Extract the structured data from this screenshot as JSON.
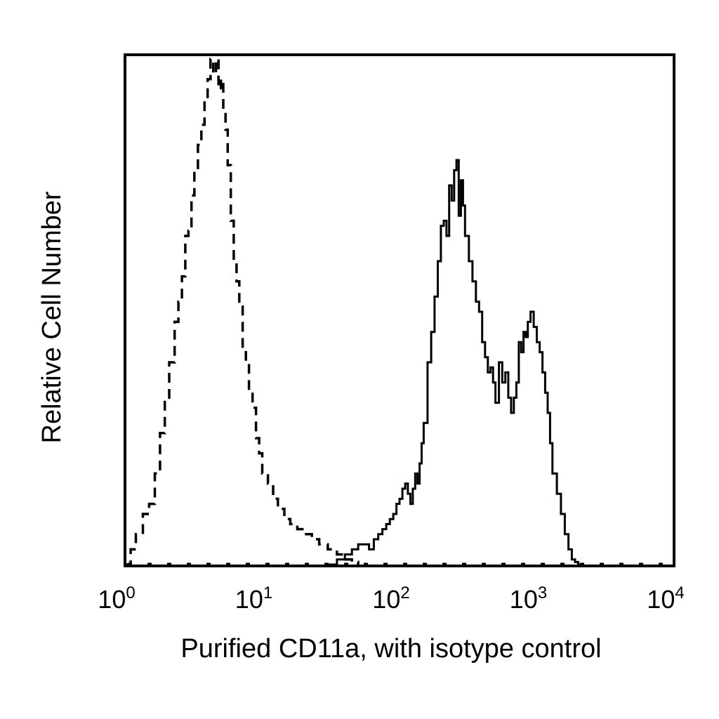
{
  "chart_data": {
    "type": "line",
    "title": "",
    "xlabel": "Purified CD11a, with isotype control",
    "ylabel": "Relative Cell Number",
    "x_scale": "log",
    "xlim": [
      1,
      10000
    ],
    "ylim": [
      0,
      100
    ],
    "x_ticks": [
      {
        "value": 1,
        "base": "10",
        "exp": "0"
      },
      {
        "value": 10,
        "base": "10",
        "exp": "1"
      },
      {
        "value": 100,
        "base": "10",
        "exp": "2"
      },
      {
        "value": 1000,
        "base": "10",
        "exp": "3"
      },
      {
        "value": 10000,
        "base": "10",
        "exp": "4"
      }
    ],
    "grid": false,
    "legend": "none",
    "series": [
      {
        "style": "dashed",
        "color": "#000000",
        "x": [
          1.0,
          1.1,
          1.2,
          1.35,
          1.5,
          1.65,
          1.8,
          1.95,
          2.1,
          2.3,
          2.45,
          2.6,
          2.75,
          2.9,
          3.05,
          3.2,
          3.4,
          3.6,
          3.8,
          4.0,
          4.2,
          4.4,
          4.6,
          4.8,
          5.0,
          5.2,
          5.4,
          5.6,
          5.9,
          6.2,
          6.5,
          6.8,
          7.2,
          7.6,
          8.0,
          8.5,
          9.0,
          9.5,
          10.0,
          11.0,
          12.0,
          13.0,
          14.5,
          16.0,
          18.0,
          20.0,
          23.0,
          26.0,
          30.0,
          35.0,
          40.0,
          45.0,
          50.0
        ],
        "y": [
          0,
          3,
          6,
          10,
          12,
          18,
          26,
          33,
          40,
          48,
          52,
          57,
          65,
          66,
          73,
          78,
          83,
          87,
          92,
          96,
          100,
          97,
          100,
          94,
          96,
          90,
          86,
          79,
          68,
          60,
          56,
          51,
          42,
          40,
          34,
          31,
          25,
          22,
          18,
          16,
          13,
          11,
          9,
          8,
          7,
          6,
          5,
          4,
          3,
          2,
          1,
          0.5,
          0
        ]
      },
      {
        "style": "solid",
        "color": "#000000",
        "x": [
          30.0,
          35.0,
          40.0,
          45.0,
          50.0,
          55.0,
          60.0,
          65.0,
          70.0,
          75.0,
          80.0,
          85.0,
          90.0,
          95.0,
          100.0,
          105.0,
          110.0,
          115.0,
          120.0,
          125.0,
          130.0,
          135.0,
          140.0,
          145.0,
          150.0,
          160.0,
          170.0,
          180.0,
          190.0,
          200.0,
          210.0,
          220.0,
          230.0,
          240.0,
          250.0,
          260.0,
          270.0,
          280.0,
          290.0,
          300.0,
          320.0,
          340.0,
          360.0,
          380.0,
          400.0,
          420.0,
          440.0,
          460.0,
          480.0,
          500.0,
          530.0,
          560.0,
          590.0,
          620.0,
          650.0,
          680.0,
          710.0,
          740.0,
          770.0,
          800.0,
          830.0,
          860.0,
          900.0,
          950.0,
          1000.0,
          1050.0,
          1100.0,
          1150.0,
          1200.0,
          1250.0,
          1300.0,
          1400.0,
          1500.0,
          1600.0,
          1700.0,
          1800.0,
          1900.0,
          2000.0,
          2100.0,
          2200.0
        ],
        "y": [
          0,
          1,
          2,
          3,
          4,
          4,
          3,
          5,
          6,
          7,
          8,
          9,
          10,
          12,
          13,
          15,
          16,
          14,
          12,
          15,
          18,
          16,
          20,
          24,
          28,
          40,
          46,
          53,
          60,
          67,
          68,
          65,
          75,
          72,
          78,
          80,
          69,
          76,
          71,
          65,
          60,
          56,
          52,
          50,
          44,
          41,
          38,
          39,
          36,
          32,
          40,
          36,
          38,
          33,
          30,
          33,
          36,
          44,
          42,
          46,
          45,
          48,
          50,
          47,
          44,
          42,
          38,
          34,
          30,
          24,
          18,
          14,
          10,
          6,
          3,
          1,
          0.5,
          0,
          0,
          0
        ]
      }
    ]
  }
}
